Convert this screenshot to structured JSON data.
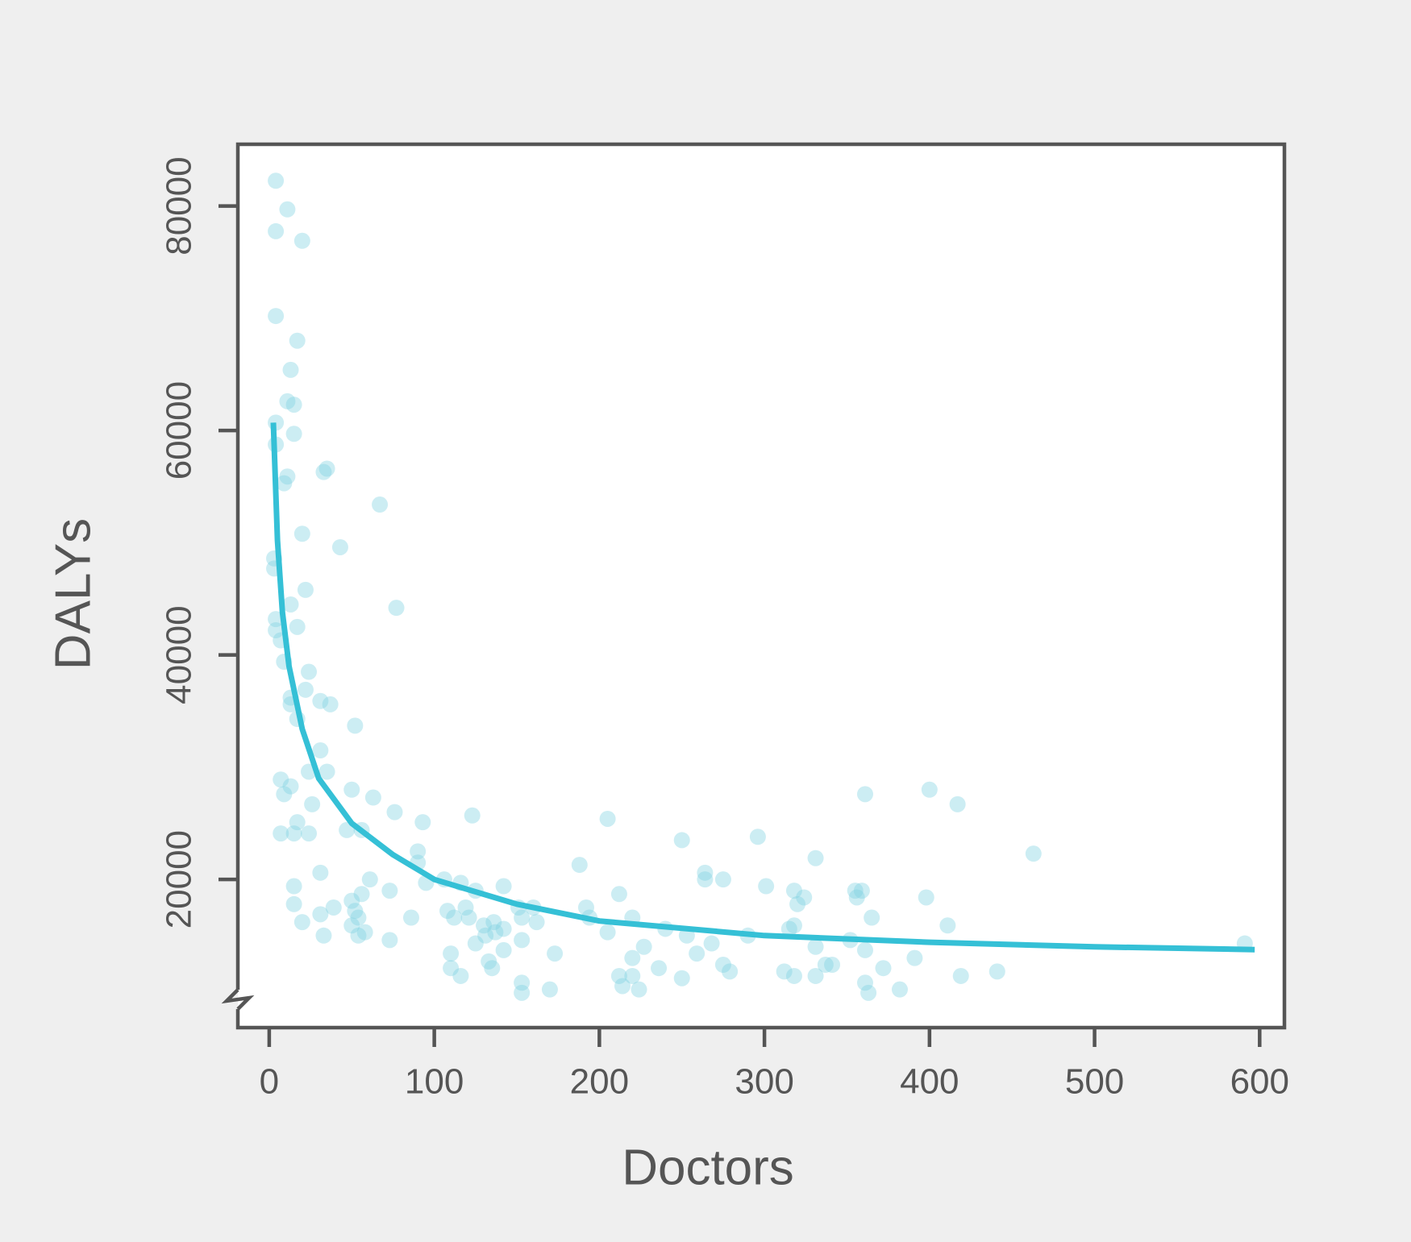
{
  "chart_data": {
    "type": "scatter",
    "x_label": "Doctors",
    "y_label": "DALYs",
    "xlim": [
      -19,
      615
    ],
    "ylim": [
      6800,
      85500
    ],
    "xticks": [
      0,
      100,
      200,
      300,
      400,
      500,
      600
    ],
    "yticks": [
      20000,
      40000,
      60000,
      80000
    ],
    "series": [
      {
        "type": "scatter",
        "color": "#7fd3e2",
        "x": [
          4,
          11,
          4,
          20,
          4,
          17,
          13,
          11,
          15,
          4,
          15,
          4,
          11,
          9,
          33,
          35,
          67,
          20,
          43,
          3,
          3,
          22,
          13,
          77,
          4,
          17,
          4,
          7,
          9,
          24,
          22,
          13,
          13,
          31,
          37,
          17,
          52,
          31,
          24,
          35,
          7,
          13,
          9,
          50,
          63,
          26,
          76,
          17,
          93,
          7,
          15,
          24,
          47,
          56,
          90,
          90,
          31,
          61,
          95,
          15,
          73,
          56,
          15,
          39,
          50,
          52,
          54,
          31,
          86,
          20,
          50,
          58,
          54,
          33,
          73,
          106,
          116,
          125,
          108,
          112,
          119,
          121,
          123,
          142,
          130,
          136,
          142,
          131,
          125,
          137,
          142,
          110,
          133,
          135,
          110,
          116,
          151,
          153,
          160,
          162,
          153,
          173,
          153,
          153,
          170,
          188,
          192,
          194,
          205,
          205,
          212,
          220,
          220,
          227,
          212,
          220,
          214,
          224,
          236,
          240,
          250,
          253,
          250,
          259,
          264,
          264,
          275,
          268,
          275,
          279,
          290,
          296,
          301,
          312,
          318,
          318,
          315,
          320,
          324,
          318,
          331,
          331,
          331,
          337,
          341,
          352,
          355,
          356,
          359,
          361,
          361,
          361,
          363,
          365,
          372,
          382,
          391,
          398,
          400,
          411,
          417,
          419,
          441,
          463,
          591
        ],
        "values": [
          82250,
          79700,
          77750,
          76900,
          70200,
          68000,
          65400,
          62600,
          62300,
          60700,
          59700,
          58750,
          55900,
          55300,
          56300,
          56600,
          53400,
          50800,
          49600,
          48600,
          47700,
          45800,
          44500,
          44200,
          43200,
          42500,
          42200,
          41300,
          39400,
          38500,
          36900,
          36200,
          35600,
          35900,
          35600,
          34300,
          33700,
          31500,
          29600,
          29600,
          28900,
          28300,
          27600,
          28000,
          27300,
          26700,
          26000,
          25100,
          25100,
          24100,
          24100,
          24100,
          24400,
          24400,
          22500,
          21500,
          20600,
          20000,
          19700,
          19400,
          19000,
          18700,
          17800,
          17500,
          18100,
          17200,
          16600,
          16900,
          16600,
          16200,
          15900,
          15300,
          15000,
          15000,
          14600,
          20000,
          19700,
          19000,
          17200,
          16600,
          17500,
          16600,
          25700,
          19400,
          15900,
          16200,
          15600,
          15000,
          14300,
          15300,
          13700,
          13400,
          12700,
          12100,
          12100,
          11400,
          17500,
          16600,
          17500,
          16200,
          14600,
          13400,
          10800,
          9900,
          10200,
          21300,
          17500,
          16600,
          25400,
          15300,
          18700,
          16600,
          13000,
          14000,
          11400,
          11400,
          10500,
          10200,
          12100,
          15600,
          23500,
          15000,
          11200,
          13400,
          20600,
          20000,
          20000,
          14300,
          12400,
          11800,
          15000,
          23800,
          19400,
          11800,
          19000,
          15900,
          15600,
          17800,
          18400,
          11400,
          21900,
          14000,
          11400,
          12400,
          12400,
          14600,
          19000,
          18400,
          19000,
          27600,
          13700,
          10800,
          9900,
          16600,
          12100,
          10200,
          13000,
          18400,
          28000,
          15900,
          26700,
          11400,
          11800,
          22300,
          14300
        ]
      },
      {
        "type": "line",
        "color": "#35c0d6",
        "x": [
          2.5,
          5,
          8,
          12,
          20,
          30,
          50,
          75,
          100,
          150,
          200,
          300,
          400,
          500,
          597
        ],
        "values": [
          60700,
          50200,
          43800,
          39000,
          33400,
          29000,
          25000,
          22200,
          20000,
          17800,
          16300,
          15000,
          14400,
          14000,
          13750
        ]
      }
    ]
  }
}
